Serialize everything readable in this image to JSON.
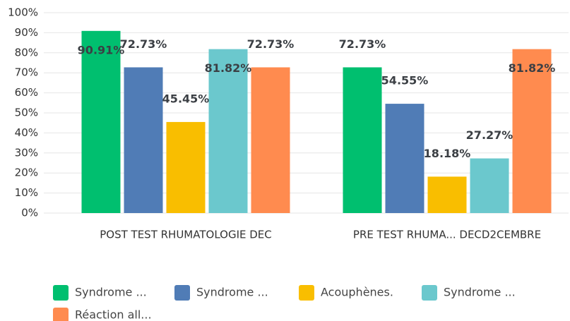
{
  "chart_data": {
    "type": "bar",
    "categories": [
      "POST TEST RHUMATOLOGIE DEC",
      "PRE TEST RHUMA... DECD2CEMBRE"
    ],
    "series": [
      {
        "name": "Syndrome ...",
        "color": "#00bf6f",
        "values": [
          90.91,
          72.73
        ],
        "value_labels": [
          "90.91%",
          "72.73%"
        ]
      },
      {
        "name": "Syndrome ...",
        "color": "#507cb6",
        "values": [
          72.73,
          54.55
        ],
        "value_labels": [
          "72.73%",
          "54.55%"
        ]
      },
      {
        "name": "Acouphènes.",
        "color": "#f9be00",
        "values": [
          45.45,
          18.18
        ],
        "value_labels": [
          "45.45%",
          "18.18%"
        ]
      },
      {
        "name": "Syndrome ...",
        "color": "#6bc8cd",
        "values": [
          81.82,
          27.27
        ],
        "value_labels": [
          "81.82%",
          "27.27%"
        ]
      },
      {
        "name": "Réaction all...",
        "color": "#ff8b4f",
        "values": [
          72.73,
          81.82
        ],
        "value_labels": [
          "72.73%",
          "81.82%"
        ]
      }
    ],
    "ylim": [
      0,
      100
    ],
    "yticks": [
      {
        "value": 0,
        "label": "0%"
      },
      {
        "value": 10,
        "label": "10%"
      },
      {
        "value": 20,
        "label": "20%"
      },
      {
        "value": 30,
        "label": "30%"
      },
      {
        "value": 40,
        "label": "40%"
      },
      {
        "value": 50,
        "label": "50%"
      },
      {
        "value": 60,
        "label": "60%"
      },
      {
        "value": 70,
        "label": "70%"
      },
      {
        "value": 80,
        "label": "80%"
      },
      {
        "value": 90,
        "label": "90%"
      },
      {
        "value": 100,
        "label": "100%"
      }
    ],
    "grid": true
  }
}
